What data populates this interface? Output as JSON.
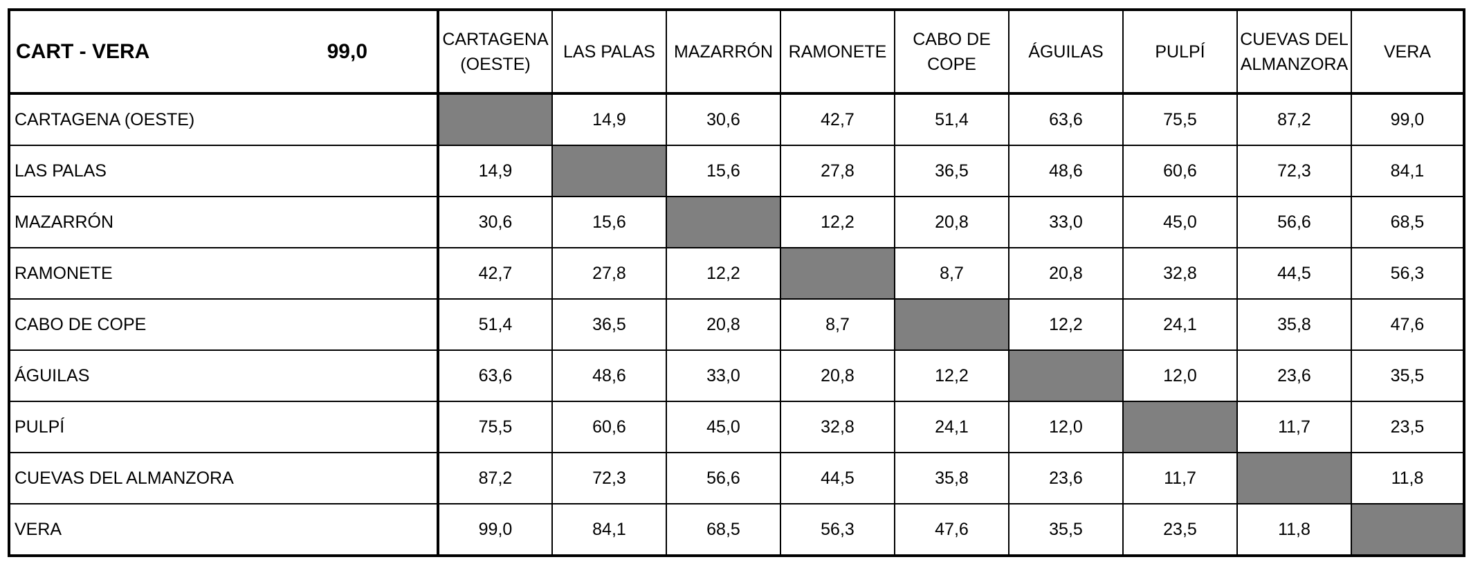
{
  "title": {
    "route": "CART - VERA",
    "distance": "99,0"
  },
  "columns": [
    "CARTAGENA\n(OESTE)",
    "LAS PALAS",
    "MAZARRÓN",
    "RAMONETE",
    "CABO DE\nCOPE",
    "ÁGUILAS",
    "PULPÍ",
    "CUEVAS DEL\nALMANZORA",
    "VERA"
  ],
  "rows": [
    {
      "label": "CARTAGENA (OESTE)",
      "values": [
        "",
        "14,9",
        "30,6",
        "42,7",
        "51,4",
        "63,6",
        "75,5",
        "87,2",
        "99,0"
      ]
    },
    {
      "label": "LAS PALAS",
      "values": [
        "14,9",
        "",
        "15,6",
        "27,8",
        "36,5",
        "48,6",
        "60,6",
        "72,3",
        "84,1"
      ]
    },
    {
      "label": "MAZARRÓN",
      "values": [
        "30,6",
        "15,6",
        "",
        "12,2",
        "20,8",
        "33,0",
        "45,0",
        "56,6",
        "68,5"
      ]
    },
    {
      "label": "RAMONETE",
      "values": [
        "42,7",
        "27,8",
        "12,2",
        "",
        "8,7",
        "20,8",
        "32,8",
        "44,5",
        "56,3"
      ]
    },
    {
      "label": "CABO DE COPE",
      "values": [
        "51,4",
        "36,5",
        "20,8",
        "8,7",
        "",
        "12,2",
        "24,1",
        "35,8",
        "47,6"
      ]
    },
    {
      "label": "ÁGUILAS",
      "values": [
        "63,6",
        "48,6",
        "33,0",
        "20,8",
        "12,2",
        "",
        "12,0",
        "23,6",
        "35,5"
      ]
    },
    {
      "label": "PULPÍ",
      "values": [
        "75,5",
        "60,6",
        "45,0",
        "32,8",
        "24,1",
        "12,0",
        "",
        "11,7",
        "23,5"
      ]
    },
    {
      "label": "CUEVAS DEL ALMANZORA",
      "values": [
        "87,2",
        "72,3",
        "56,6",
        "44,5",
        "35,8",
        "23,6",
        "11,7",
        "",
        "11,8"
      ]
    },
    {
      "label": "VERA",
      "values": [
        "99,0",
        "84,1",
        "68,5",
        "56,3",
        "47,6",
        "35,5",
        "23,5",
        "11,8",
        ""
      ]
    }
  ],
  "colors": {
    "diagonal_fill": "#808080",
    "grid": "#000000"
  }
}
